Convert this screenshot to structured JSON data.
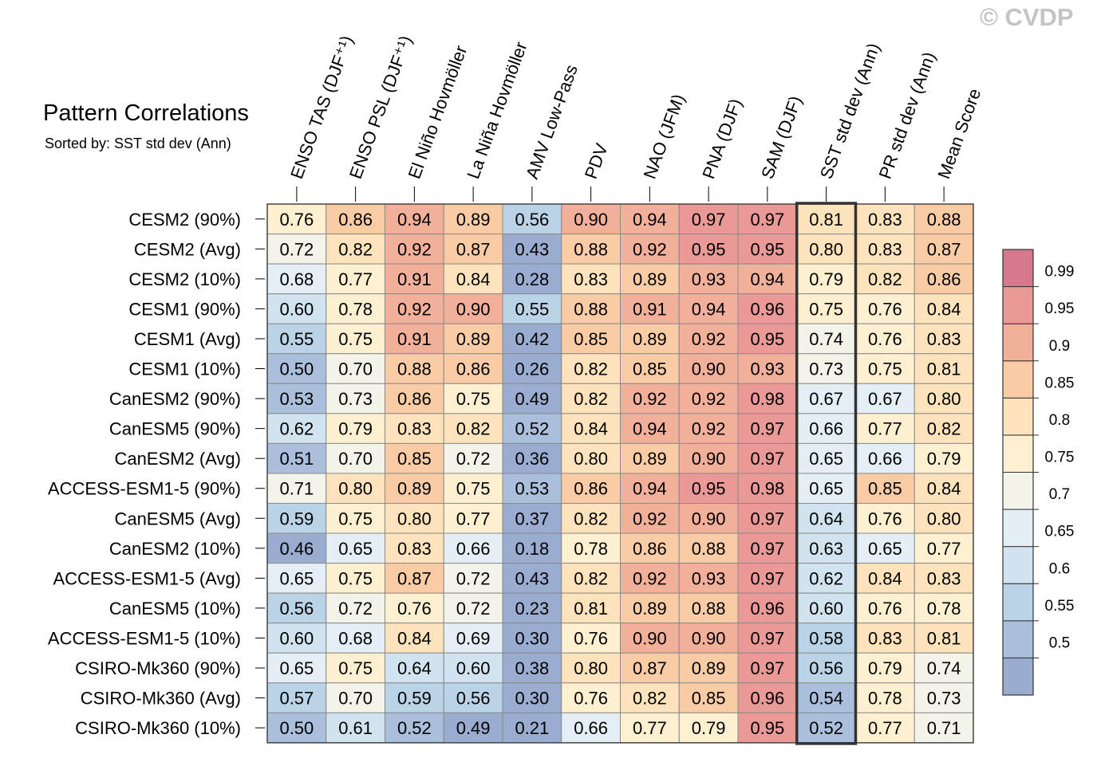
{
  "watermark": "© CVDP",
  "chart_data": {
    "type": "heatmap",
    "title": "Pattern Correlations",
    "subtitle": "Sorted by: SST std dev (Ann)",
    "columns": [
      "ENSO TAS (DJF⁺¹)",
      "ENSO PSL (DJF⁺¹)",
      "El Niño Hovmöller",
      "La Niña Hovmöller",
      "AMV Low-Pass",
      "PDV",
      "NAO (JFM)",
      "PNA (DJF)",
      "SAM (DJF)",
      "SST std dev (Ann)",
      "PR std dev (Ann)",
      "Mean Score"
    ],
    "highlighted_column": "SST std dev (Ann)",
    "rows": [
      "CESM2 (90%)",
      "CESM2 (Avg)",
      "CESM2 (10%)",
      "CESM1 (90%)",
      "CESM1 (Avg)",
      "CESM1 (10%)",
      "CanESM2 (90%)",
      "CanESM5 (90%)",
      "CanESM2 (Avg)",
      "ACCESS-ESM1-5 (90%)",
      "CanESM5 (Avg)",
      "CanESM2 (10%)",
      "ACCESS-ESM1-5 (Avg)",
      "CanESM5 (10%)",
      "ACCESS-ESM1-5 (10%)",
      "CSIRO-Mk360 (90%)",
      "CSIRO-Mk360 (Avg)",
      "CSIRO-Mk360 (10%)"
    ],
    "values": [
      [
        "0.76",
        "0.86",
        "0.94",
        "0.89",
        "0.56",
        "0.90",
        "0.94",
        "0.97",
        "0.97",
        "0.81",
        "0.83",
        "0.88"
      ],
      [
        "0.72",
        "0.82",
        "0.92",
        "0.87",
        "0.43",
        "0.88",
        "0.92",
        "0.95",
        "0.95",
        "0.80",
        "0.83",
        "0.87"
      ],
      [
        "0.68",
        "0.77",
        "0.91",
        "0.84",
        "0.28",
        "0.83",
        "0.89",
        "0.93",
        "0.94",
        "0.79",
        "0.82",
        "0.86"
      ],
      [
        "0.60",
        "0.78",
        "0.92",
        "0.90",
        "0.55",
        "0.88",
        "0.91",
        "0.94",
        "0.96",
        "0.75",
        "0.76",
        "0.84"
      ],
      [
        "0.55",
        "0.75",
        "0.91",
        "0.89",
        "0.42",
        "0.85",
        "0.89",
        "0.92",
        "0.95",
        "0.74",
        "0.76",
        "0.83"
      ],
      [
        "0.50",
        "0.70",
        "0.88",
        "0.86",
        "0.26",
        "0.82",
        "0.85",
        "0.90",
        "0.93",
        "0.73",
        "0.75",
        "0.81"
      ],
      [
        "0.53",
        "0.73",
        "0.86",
        "0.75",
        "0.49",
        "0.82",
        "0.92",
        "0.92",
        "0.98",
        "0.67",
        "0.67",
        "0.80"
      ],
      [
        "0.62",
        "0.79",
        "0.83",
        "0.82",
        "0.52",
        "0.84",
        "0.94",
        "0.92",
        "0.97",
        "0.66",
        "0.77",
        "0.82"
      ],
      [
        "0.51",
        "0.70",
        "0.85",
        "0.72",
        "0.36",
        "0.80",
        "0.89",
        "0.90",
        "0.97",
        "0.65",
        "0.66",
        "0.79"
      ],
      [
        "0.71",
        "0.80",
        "0.89",
        "0.75",
        "0.53",
        "0.86",
        "0.94",
        "0.95",
        "0.98",
        "0.65",
        "0.85",
        "0.84"
      ],
      [
        "0.59",
        "0.75",
        "0.80",
        "0.77",
        "0.37",
        "0.82",
        "0.92",
        "0.90",
        "0.97",
        "0.64",
        "0.76",
        "0.80"
      ],
      [
        "0.46",
        "0.65",
        "0.83",
        "0.66",
        "0.18",
        "0.78",
        "0.86",
        "0.88",
        "0.97",
        "0.63",
        "0.65",
        "0.77"
      ],
      [
        "0.65",
        "0.75",
        "0.87",
        "0.72",
        "0.43",
        "0.82",
        "0.92",
        "0.93",
        "0.97",
        "0.62",
        "0.84",
        "0.83"
      ],
      [
        "0.56",
        "0.72",
        "0.76",
        "0.72",
        "0.23",
        "0.81",
        "0.89",
        "0.88",
        "0.96",
        "0.60",
        "0.76",
        "0.78"
      ],
      [
        "0.60",
        "0.68",
        "0.84",
        "0.69",
        "0.30",
        "0.76",
        "0.90",
        "0.90",
        "0.97",
        "0.58",
        "0.83",
        "0.81"
      ],
      [
        "0.65",
        "0.75",
        "0.64",
        "0.60",
        "0.38",
        "0.80",
        "0.87",
        "0.89",
        "0.97",
        "0.56",
        "0.79",
        "0.74"
      ],
      [
        "0.57",
        "0.70",
        "0.59",
        "0.56",
        "0.30",
        "0.76",
        "0.82",
        "0.85",
        "0.96",
        "0.54",
        "0.78",
        "0.73"
      ],
      [
        "0.50",
        "0.61",
        "0.52",
        "0.49",
        "0.21",
        "0.66",
        "0.77",
        "0.79",
        "0.95",
        "0.52",
        "0.77",
        "0.71"
      ]
    ],
    "colorbar": {
      "labels": [
        "0.99",
        "0.95",
        "0.9",
        "0.85",
        "0.8",
        "0.75",
        "0.7",
        "0.65",
        "0.6",
        "0.55",
        "0.5"
      ],
      "levels": [
        0.5,
        0.55,
        0.6,
        0.65,
        0.7,
        0.75,
        0.8,
        0.85,
        0.9,
        0.95,
        0.99
      ],
      "colors": [
        "#9aaccf",
        "#aabfdb",
        "#bbd3e6",
        "#d0e3ee",
        "#e3eff5",
        "#f3f3ea",
        "#fdf0d0",
        "#fde3bb",
        "#f9cca6",
        "#f2b09b",
        "#ea9996",
        "#d6788e"
      ]
    }
  }
}
